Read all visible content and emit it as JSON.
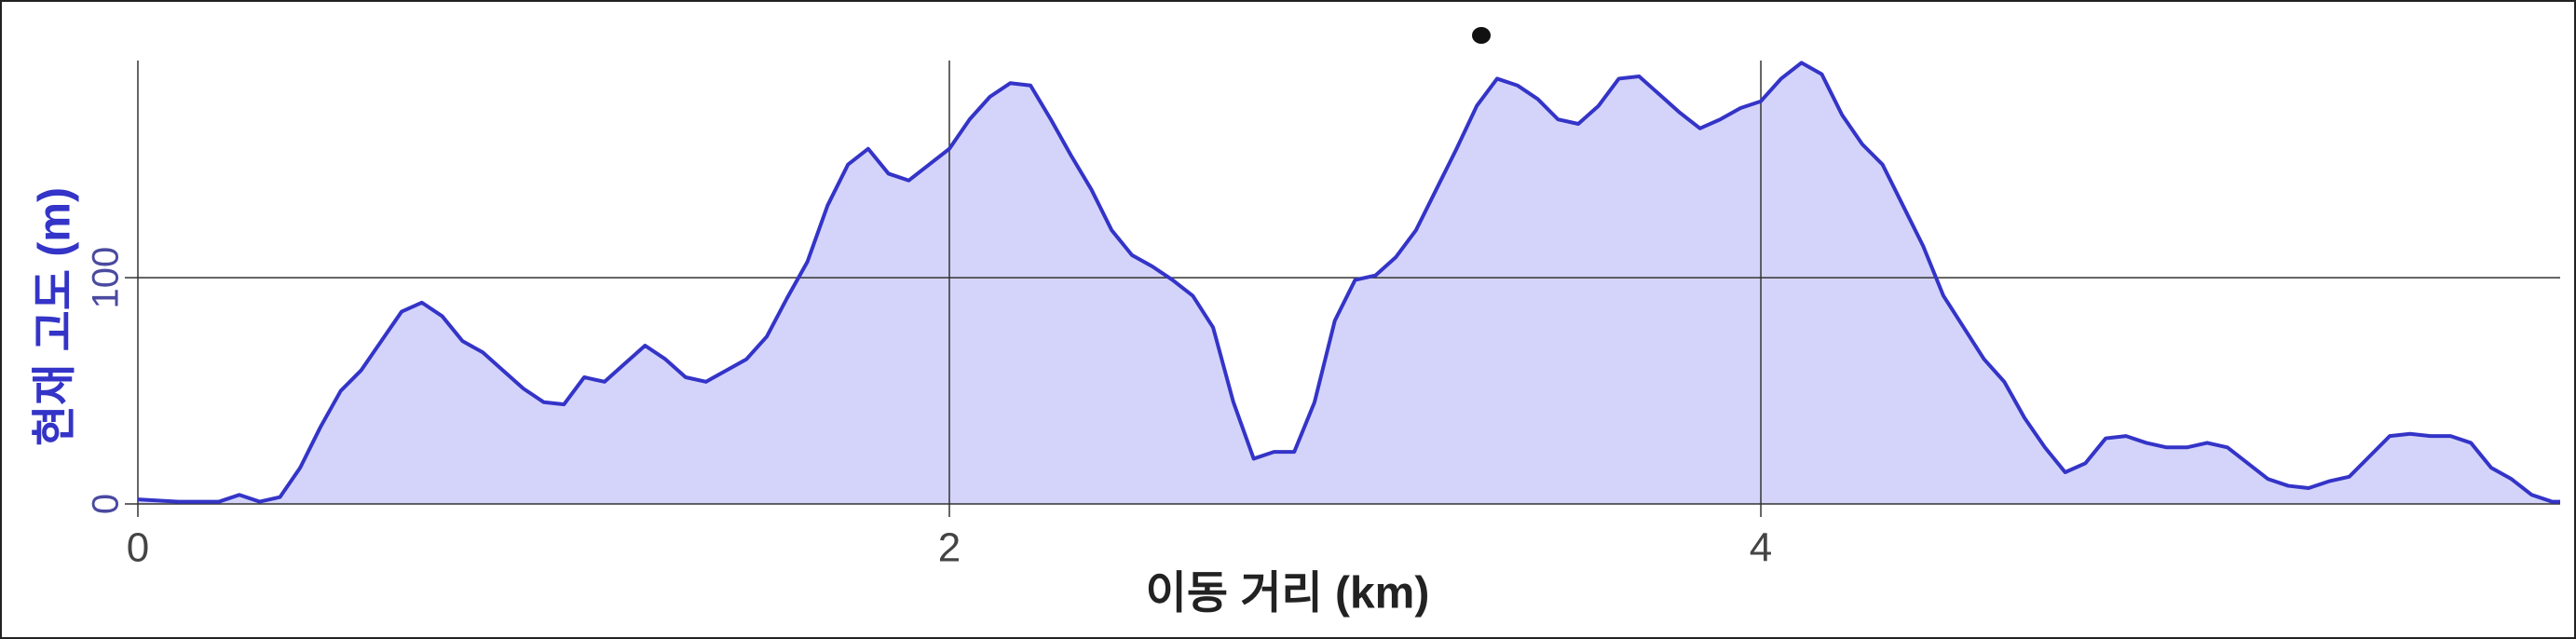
{
  "chart_data": {
    "type": "area",
    "x_label": "이동 거리 (km)",
    "y_label": "현재 고도 (m)",
    "x": [
      0,
      0.1,
      0.2,
      0.25,
      0.3,
      0.35,
      0.4,
      0.45,
      0.5,
      0.55,
      0.6,
      0.65,
      0.7,
      0.75,
      0.8,
      0.85,
      0.9,
      0.95,
      1.0,
      1.05,
      1.1,
      1.15,
      1.2,
      1.25,
      1.3,
      1.35,
      1.4,
      1.45,
      1.5,
      1.55,
      1.6,
      1.65,
      1.7,
      1.75,
      1.8,
      1.85,
      1.9,
      1.95,
      2.0,
      2.05,
      2.1,
      2.15,
      2.2,
      2.25,
      2.3,
      2.35,
      2.4,
      2.45,
      2.5,
      2.55,
      2.6,
      2.65,
      2.7,
      2.75,
      2.8,
      2.85,
      2.9,
      2.95,
      3.0,
      3.05,
      3.1,
      3.15,
      3.2,
      3.25,
      3.3,
      3.35,
      3.4,
      3.45,
      3.5,
      3.55,
      3.6,
      3.65,
      3.7,
      3.75,
      3.8,
      3.85,
      3.9,
      3.95,
      4.0,
      4.05,
      4.1,
      4.15,
      4.2,
      4.25,
      4.3,
      4.35,
      4.4,
      4.45,
      4.5,
      4.55,
      4.6,
      4.65,
      4.7,
      4.75,
      4.8,
      4.85,
      4.9,
      4.95,
      5.0,
      5.05,
      5.1,
      5.15,
      5.2,
      5.25,
      5.3,
      5.35,
      5.4,
      5.45,
      5.5,
      5.55,
      5.6,
      5.65,
      5.7,
      5.75,
      5.8,
      5.85,
      5.9,
      5.95,
      5.97
    ],
    "values": [
      2,
      1,
      1,
      4,
      1,
      3,
      16,
      34,
      50,
      59,
      72,
      85,
      89,
      83,
      72,
      67,
      59,
      51,
      45,
      44,
      56,
      54,
      62,
      70,
      64,
      56,
      54,
      59,
      64,
      74,
      91,
      107,
      132,
      150,
      157,
      146,
      143,
      150,
      157,
      170,
      180,
      186,
      185,
      170,
      154,
      139,
      121,
      110,
      105,
      99,
      92,
      78,
      45,
      20,
      23,
      23,
      45,
      81,
      99,
      101,
      109,
      121,
      139,
      157,
      176,
      188,
      185,
      179,
      170,
      168,
      176,
      188,
      189,
      181,
      173,
      166,
      170,
      175,
      178,
      188,
      195,
      190,
      172,
      159,
      150,
      132,
      114,
      92,
      78,
      64,
      54,
      38,
      25,
      14,
      18,
      29,
      30,
      27,
      25,
      25,
      27,
      25,
      18,
      11,
      8,
      7,
      10,
      12,
      21,
      30,
      31,
      30,
      30,
      27,
      16,
      11,
      4,
      1,
      1
    ],
    "color": "#3434c8",
    "fill": "#d4d4fa",
    "xlim": [
      0,
      5.97
    ],
    "ylim": [
      0,
      196
    ],
    "xticks": [
      0,
      2,
      4
    ],
    "yticks": [
      0,
      100
    ],
    "grid": true
  }
}
